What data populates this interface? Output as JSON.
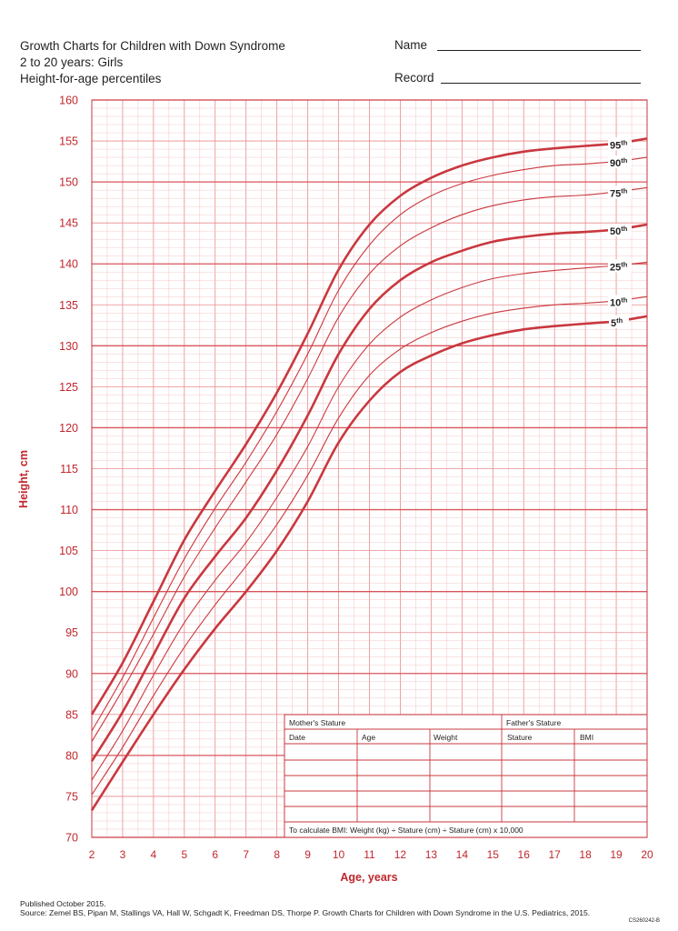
{
  "header": {
    "title_line1": "Growth Charts for Children with Down Syndrome",
    "title_line2": "2 to 20 years: Girls",
    "title_line3": "Height-for-age percentiles",
    "name_label": "Name",
    "record_label": "Record"
  },
  "chart_data": {
    "type": "line",
    "title": "Height-for-age percentiles",
    "xlabel": "Age, years",
    "ylabel": "Height, cm",
    "xlim": [
      2,
      20
    ],
    "ylim": [
      70,
      160
    ],
    "x_ticks": [
      2,
      3,
      4,
      5,
      6,
      7,
      8,
      9,
      10,
      11,
      12,
      13,
      14,
      15,
      16,
      17,
      18,
      19,
      20
    ],
    "y_ticks": [
      70,
      75,
      80,
      85,
      90,
      95,
      100,
      105,
      110,
      115,
      120,
      125,
      130,
      135,
      140,
      145,
      150,
      155,
      160
    ],
    "grid": true,
    "x": [
      2,
      3,
      4,
      5,
      6,
      7,
      8,
      9,
      10,
      11,
      12,
      13,
      14,
      15,
      16,
      17,
      18,
      19,
      20
    ],
    "series": [
      {
        "name": "95th",
        "label": "95",
        "sup": "th",
        "bold": true,
        "values": [
          85,
          91.3,
          98.8,
          106.3,
          112.3,
          118,
          124.3,
          131.5,
          139.3,
          144.8,
          148.3,
          150.5,
          152,
          153,
          153.7,
          154.1,
          154.4,
          154.7,
          155.3
        ]
      },
      {
        "name": "90th",
        "label": "90",
        "sup": "th",
        "bold": false,
        "values": [
          83,
          89.5,
          96.8,
          104,
          110.2,
          115.8,
          122,
          129,
          136.8,
          142.3,
          146,
          148.3,
          149.8,
          150.8,
          151.5,
          152,
          152.2,
          152.5,
          153
        ]
      },
      {
        "name": "75th",
        "label": "75",
        "sup": "th",
        "bold": false,
        "values": [
          81.7,
          88,
          94.8,
          101.8,
          107.8,
          113.4,
          119.2,
          126,
          133.5,
          138.8,
          142.2,
          144.4,
          146,
          147.1,
          147.8,
          148.2,
          148.4,
          148.8,
          149.3
        ]
      },
      {
        "name": "50th",
        "label": "50",
        "sup": "th",
        "bold": true,
        "values": [
          79.3,
          85.3,
          92.3,
          99.2,
          104.3,
          109,
          114.8,
          121.5,
          129,
          134.5,
          138,
          140.2,
          141.6,
          142.7,
          143.3,
          143.7,
          143.9,
          144.2,
          144.8
        ]
      },
      {
        "name": "25th",
        "label": "25",
        "sup": "th",
        "bold": false,
        "values": [
          77,
          83,
          89.8,
          96.2,
          101.4,
          106,
          111.5,
          117.7,
          125,
          130.2,
          133.5,
          135.6,
          137.1,
          138.2,
          138.8,
          139.2,
          139.5,
          139.8,
          140.2
        ]
      },
      {
        "name": "10th",
        "label": "10",
        "sup": "th",
        "bold": false,
        "values": [
          75.2,
          81,
          87.3,
          93.2,
          98.4,
          103.1,
          108.2,
          114.2,
          121.2,
          126.4,
          129.6,
          131.6,
          133,
          134,
          134.6,
          135,
          135.2,
          135.5,
          136
        ]
      },
      {
        "name": "5th",
        "label": "5",
        "sup": "th",
        "bold": true,
        "values": [
          73.3,
          79.2,
          85,
          90.5,
          95.5,
          100,
          105,
          111,
          118.2,
          123.3,
          126.8,
          128.8,
          130.3,
          131.3,
          132,
          132.4,
          132.7,
          133,
          133.6
        ]
      }
    ]
  },
  "record_table": {
    "mothers_stature": "Mother's Stature",
    "fathers_stature": "Father's Stature",
    "columns": [
      "Date",
      "Age",
      "Weight",
      "Stature",
      "BMI"
    ],
    "bmi_formula": "To calculate BMI: Weight (kg) ÷ Stature (cm) ÷ Stature (cm) x 10,000"
  },
  "footer": {
    "published": "Published October 2015.",
    "source": "Source: Zemel BS, Pipan M, Stallings VA, Hall W, Schgadt K, Freedman DS, Thorpe P. Growth Charts for Children with Down Syndrome in the U.S. Pediatrics, 2015.",
    "code": "CS260242-B"
  },
  "colors": {
    "line": "#c8383f",
    "grid": "#e88b8e",
    "text_red": "#c0272d",
    "text_dark": "#231f20"
  }
}
